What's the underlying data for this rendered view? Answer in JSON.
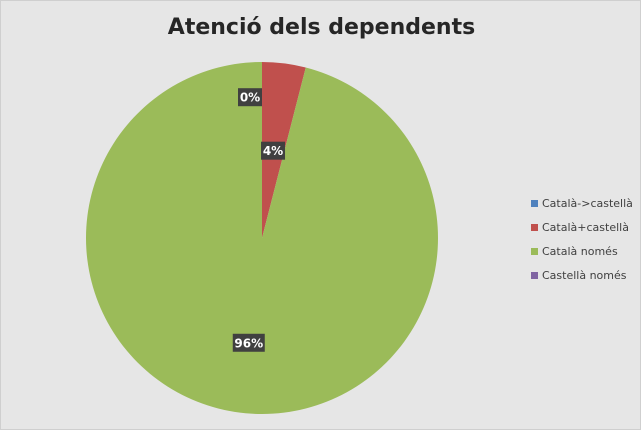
{
  "chart_data": {
    "type": "pie",
    "title": "Atenció dels dependents",
    "categories": [
      "Català->castellà",
      "Català+castellà",
      "Català només",
      "Castellà només"
    ],
    "values": [
      0,
      4,
      96,
      0
    ],
    "value_labels": [
      "0%",
      "4%",
      "96%",
      ""
    ],
    "colors": [
      "#4f81bd",
      "#c0504d",
      "#9bbb59",
      "#8064a2"
    ],
    "legend": "right",
    "data_label_style": "dark box, white bold text"
  }
}
